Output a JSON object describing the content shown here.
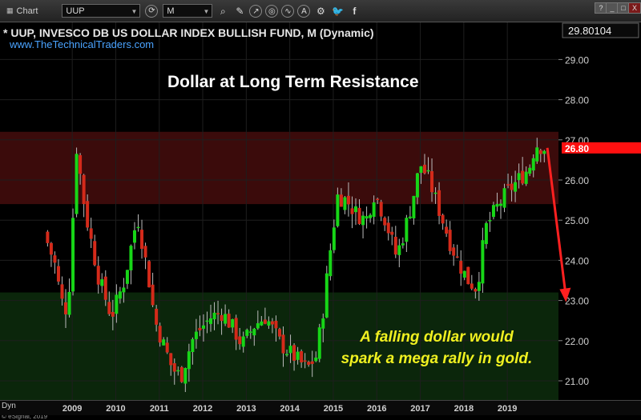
{
  "toolbar": {
    "title": "Chart",
    "symbol": "UUP",
    "interval": "M",
    "icons": [
      "refresh-icon",
      "search-icon",
      "pencil-icon",
      "cursor-icon",
      "target-icon",
      "wave-icon",
      "text-icon",
      "tools-icon",
      "twitter-icon",
      "facebook-icon"
    ],
    "window_buttons": [
      "?",
      "_",
      "□",
      "X"
    ]
  },
  "chart": {
    "title": "* UUP, INVESCO DB US DOLLAR INDEX BULLISH FUND, M (Dynamic)",
    "url": "www.TheTechnicalTraders.com",
    "caption": "Dollar at Long Term Resistance",
    "note_line1": "A falling dollar would",
    "note_line2": "spark a mega rally in gold.",
    "top_price_label": "29.80104",
    "current_price_label": "26.80",
    "watermark": "© eSignal, 2019",
    "footer_label": "Dyn"
  },
  "colors": {
    "up": "#17d617",
    "down": "#d42a1a",
    "resistance_zone": "#3b0b0b",
    "support_zone": "#0b260b",
    "price_tag": "#ff1010",
    "arrow": "#ff2020",
    "note_text": "#f0f020",
    "url_text": "#4aa3ff"
  },
  "chart_data": {
    "type": "candlestick",
    "title": "* UUP, INVESCO DB US DOLLAR INDEX BULLISH FUND, M (Dynamic)",
    "subtitle": "www.TheTechnicalTraders.com",
    "annotations": [
      "Dollar at Long Term Resistance",
      "A falling dollar would",
      "spark a mega rally in gold."
    ],
    "x_ticks": [
      "2009",
      "2010",
      "2011",
      "2012",
      "2013",
      "2014",
      "2015",
      "2016",
      "2017",
      "2018",
      "2019"
    ],
    "y_ticks": [
      21,
      22,
      23,
      24,
      25,
      26,
      27,
      28,
      29
    ],
    "y_tick_labels": [
      "21.00",
      "22.00",
      "23.00",
      "24.00",
      "25.00",
      "26.00",
      "27.00",
      "28.00",
      "29.00"
    ],
    "ylim": [
      20.7,
      29.8
    ],
    "last_price": 26.8,
    "zones": [
      {
        "name": "resistance",
        "low": 25.4,
        "high": 27.2
      },
      {
        "name": "support",
        "low": 20.7,
        "high": 23.2
      }
    ],
    "projection_arrow": {
      "from": [
        2019.92,
        26.8
      ],
      "to": [
        2020.33,
        23.0
      ]
    },
    "path_years": [
      2008.35,
      2008.6,
      2008.75,
      2008.9,
      2009.1,
      2009.3,
      2009.6,
      2009.9,
      2010.2,
      2010.4,
      2010.5,
      2010.75,
      2010.9,
      2011.1,
      2011.3,
      2011.5,
      2011.75,
      2011.95,
      2012.2,
      2012.45,
      2012.7,
      2012.9,
      2013.2,
      2013.45,
      2013.6,
      2013.8,
      2014.1,
      2014.4,
      2014.6,
      2014.75,
      2014.9,
      2015.1,
      2015.3,
      2015.5,
      2015.75,
      2015.95,
      2016.2,
      2016.45,
      2016.6,
      2016.8,
      2017.0,
      2017.2,
      2017.45,
      2017.7,
      2017.9,
      2018.1,
      2018.3,
      2018.5,
      2018.75,
      2019.0,
      2019.25,
      2019.5,
      2019.65,
      2019.85
    ],
    "path_values": [
      24.7,
      23.9,
      23.0,
      22.7,
      26.8,
      25.2,
      23.6,
      22.6,
      23.5,
      24.6,
      25.1,
      23.6,
      22.5,
      21.9,
      21.3,
      21.1,
      22.0,
      22.3,
      22.6,
      22.7,
      22.3,
      21.9,
      22.4,
      22.6,
      22.3,
      21.9,
      21.6,
      21.3,
      21.6,
      22.6,
      24.0,
      25.6,
      25.5,
      25.2,
      25.0,
      25.7,
      25.0,
      24.1,
      24.6,
      25.4,
      26.4,
      26.0,
      25.2,
      24.4,
      23.9,
      23.5,
      23.3,
      24.8,
      25.3,
      25.7,
      26.0,
      26.3,
      26.9,
      26.8
    ]
  }
}
